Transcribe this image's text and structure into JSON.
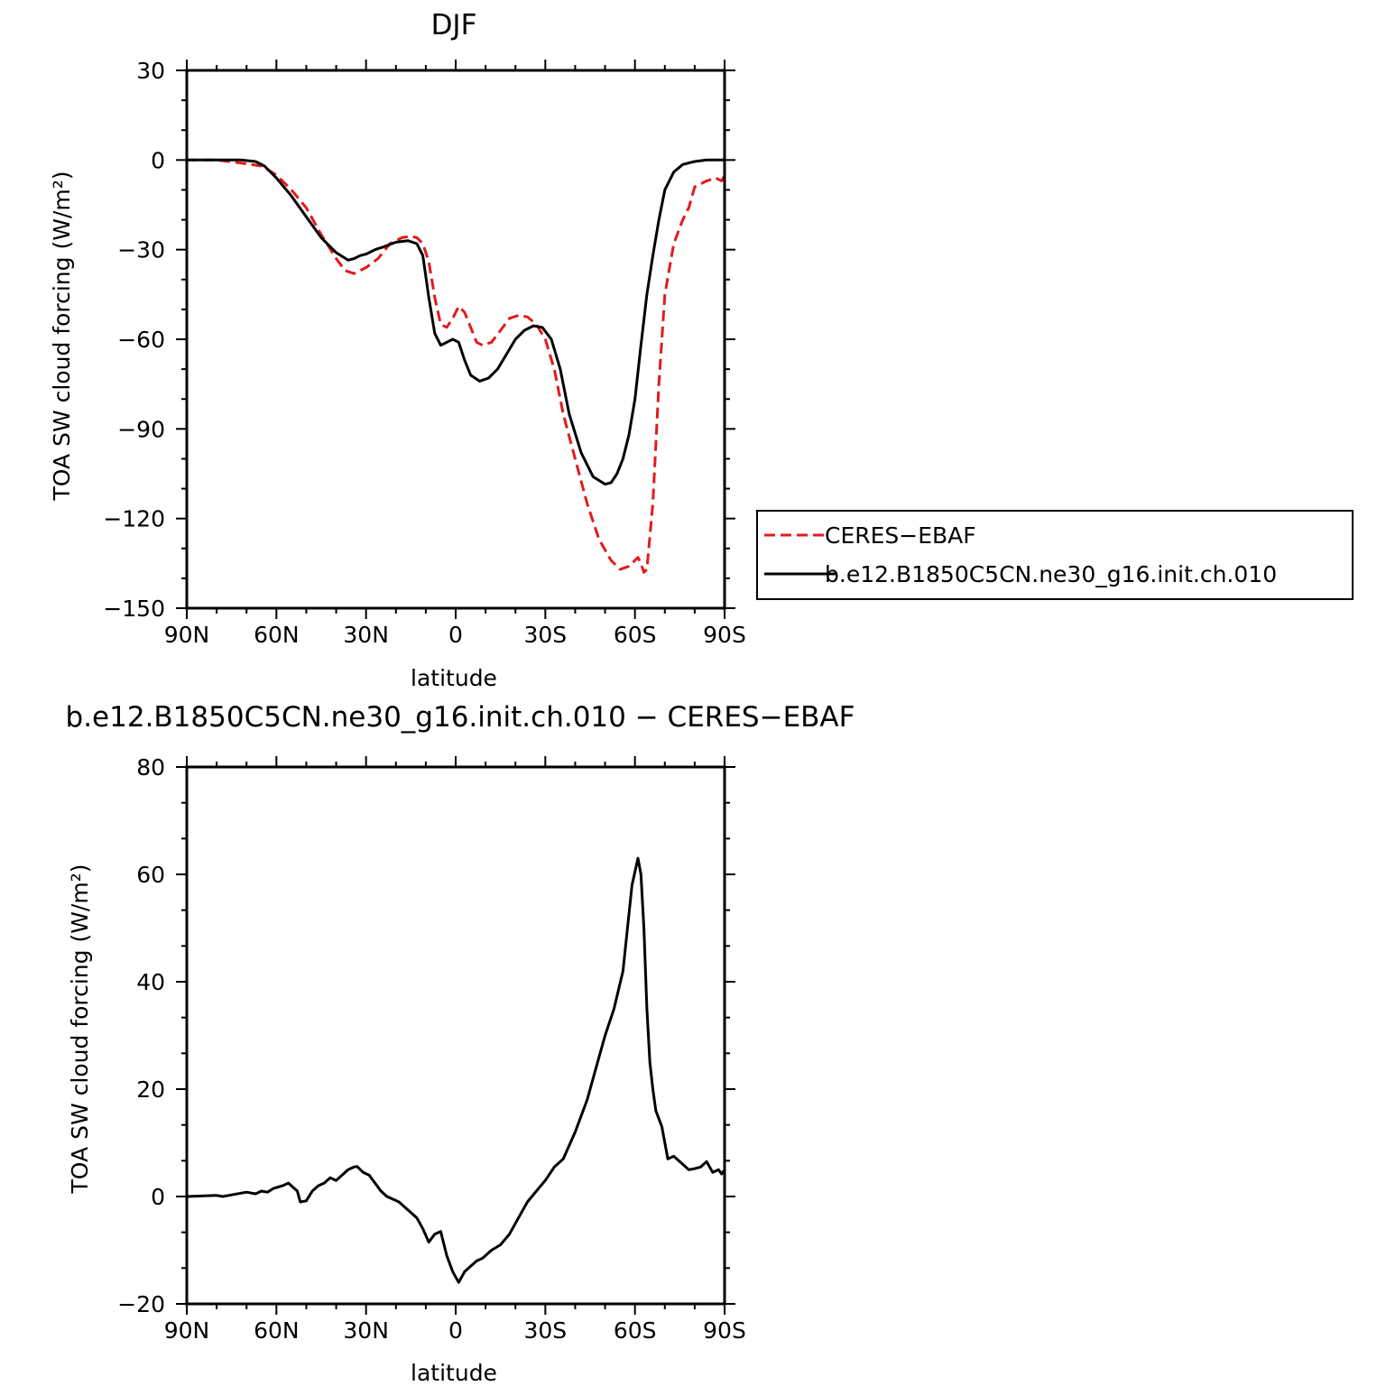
{
  "chart_data": [
    {
      "type": "line",
      "title": "DJF",
      "xlabel": "latitude",
      "ylabel": "TOA SW cloud forcing (W/m²)",
      "xlim": [
        90,
        -90
      ],
      "ylim": [
        -150,
        30
      ],
      "x_tick_values": [
        90,
        60,
        30,
        0,
        -30,
        -60,
        -90
      ],
      "x_tick_labels": [
        "90N",
        "60N",
        "30N",
        "0",
        "30S",
        "60S",
        "90S"
      ],
      "y_tick_values": [
        30,
        0,
        -30,
        -60,
        -90,
        -120,
        -150
      ],
      "y_tick_labels": [
        "30",
        "0",
        "−30",
        "−60",
        "−90",
        "−120",
        "−150"
      ],
      "grid": false,
      "legend_position": "right",
      "series": [
        {
          "name": "CERES−EBAF",
          "color": "#e31a1c",
          "dash": "dashed",
          "x": [
            90,
            80,
            72,
            65,
            60,
            55,
            50,
            45,
            40,
            37,
            34,
            30,
            26,
            22,
            18,
            15,
            13,
            11,
            9,
            7,
            5,
            3,
            1,
            -1,
            -3,
            -5,
            -7,
            -9,
            -12,
            -15,
            -18,
            -21,
            -24,
            -27,
            -30,
            -33,
            -36,
            -40,
            -44,
            -48,
            -52,
            -55,
            -58,
            -60,
            -61,
            -62,
            -63,
            -64,
            -66,
            -68,
            -70,
            -73,
            -76,
            -78,
            -80,
            -84,
            -87,
            -89,
            -90
          ],
          "y": [
            0,
            0,
            -1,
            -2,
            -5,
            -10,
            -16,
            -25,
            -33,
            -37,
            -38,
            -36,
            -33,
            -28,
            -26,
            -25.5,
            -26,
            -28,
            -34,
            -46,
            -55,
            -56,
            -53,
            -49,
            -51,
            -56,
            -61,
            -62,
            -61,
            -57,
            -53,
            -52,
            -52.5,
            -55,
            -60,
            -70,
            -85,
            -100,
            -115,
            -127,
            -134,
            -137,
            -136,
            -134,
            -133,
            -135,
            -138,
            -137,
            -115,
            -75,
            -45,
            -28,
            -20,
            -16,
            -9,
            -7,
            -6,
            -7,
            -5
          ]
        },
        {
          "name": "b.e12.B1850C5CN.ne30_g16.init.ch.010",
          "color": "#000000",
          "dash": "solid",
          "x": [
            90,
            80,
            72,
            67,
            64,
            60,
            55,
            50,
            45,
            40,
            36,
            34,
            32,
            30,
            27,
            24,
            20,
            16,
            13,
            11,
            9,
            7,
            5,
            3,
            1,
            -1,
            -3,
            -5,
            -8,
            -11,
            -14,
            -17,
            -20,
            -23,
            -26,
            -29,
            -32,
            -35,
            -38,
            -42,
            -46,
            -50,
            -52,
            -54,
            -56,
            -58,
            -60,
            -62,
            -64,
            -66,
            -68,
            -70,
            -73,
            -76,
            -78,
            -80,
            -84,
            -87,
            -90
          ],
          "y": [
            0,
            0,
            0,
            -0.5,
            -2,
            -6,
            -12,
            -19,
            -26,
            -31,
            -33.5,
            -33,
            -32,
            -31.5,
            -30,
            -29,
            -27.5,
            -27,
            -28,
            -32,
            -46,
            -58,
            -62,
            -61,
            -60,
            -61,
            -67,
            -72,
            -74,
            -73,
            -70,
            -65,
            -60,
            -57,
            -55.5,
            -56,
            -60,
            -70,
            -85,
            -98,
            -106,
            -108.5,
            -108,
            -105,
            -100,
            -92,
            -80,
            -62,
            -45,
            -32,
            -20,
            -10,
            -4,
            -1.5,
            -1,
            -0.5,
            0,
            0,
            0
          ]
        }
      ]
    },
    {
      "type": "line",
      "title": "b.e12.B1850C5CN.ne30_g16.init.ch.010 − CERES−EBAF",
      "xlabel": "latitude",
      "ylabel": "TOA SW cloud forcing (W/m²)",
      "xlim": [
        90,
        -90
      ],
      "ylim": [
        -20,
        80
      ],
      "x_tick_values": [
        90,
        60,
        30,
        0,
        -30,
        -60,
        -90
      ],
      "x_tick_labels": [
        "90N",
        "60N",
        "30N",
        "0",
        "30S",
        "60S",
        "90S"
      ],
      "y_tick_values": [
        80,
        60,
        40,
        20,
        0,
        -20
      ],
      "y_tick_labels": [
        "80",
        "60",
        "40",
        "20",
        "0",
        "−20"
      ],
      "grid": false,
      "series": [
        {
          "color": "#000000",
          "dash": "solid",
          "x": [
            90,
            80,
            78,
            75,
            70,
            67,
            65,
            63,
            61,
            58,
            56,
            53,
            52,
            50,
            48,
            46,
            44,
            42,
            40,
            38,
            36,
            34,
            33,
            31,
            29,
            27,
            25,
            23,
            21,
            19,
            17,
            15,
            13,
            11,
            9,
            7,
            5,
            3,
            1,
            -1,
            -3,
            -5,
            -7,
            -9,
            -12,
            -15,
            -18,
            -21,
            -24,
            -27,
            -30,
            -33,
            -36,
            -40,
            -44,
            -47,
            -50,
            -53,
            -56,
            -59,
            -61,
            -62,
            -63,
            -64,
            -65,
            -66,
            -67,
            -69,
            -71,
            -73,
            -75,
            -77,
            -78,
            -80,
            -82,
            -84,
            -86,
            -88,
            -89,
            -90
          ],
          "y": [
            0,
            0.2,
            0,
            0.3,
            0.8,
            0.5,
            1,
            0.8,
            1.5,
            2,
            2.5,
            1,
            -1,
            -0.8,
            1,
            2,
            2.5,
            3.5,
            3,
            4,
            5,
            5.5,
            5.6,
            4.5,
            4,
            2.5,
            1,
            0,
            -0.5,
            -1,
            -2,
            -3,
            -4,
            -6,
            -8.5,
            -7,
            -6.5,
            -11,
            -14,
            -16,
            -14,
            -13,
            -12,
            -11.5,
            -10,
            -9,
            -7,
            -4,
            -1,
            1,
            3,
            5.5,
            7,
            12,
            18,
            24,
            30,
            35,
            42,
            58,
            63,
            60,
            50,
            35,
            25,
            20,
            16,
            13,
            7,
            7.5,
            6.5,
            5.5,
            5,
            5.2,
            5.5,
            6.5,
            4.5,
            5,
            4.2,
            5
          ]
        }
      ]
    }
  ]
}
